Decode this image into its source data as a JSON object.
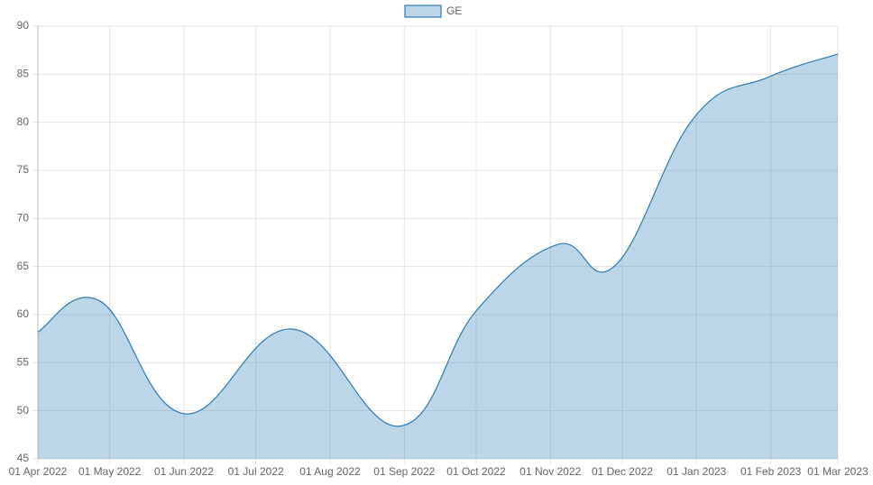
{
  "chart_data": {
    "type": "area",
    "x": [
      "2022-04-01",
      "2022-04-27",
      "2022-06-01",
      "2022-07-16",
      "2022-08-30",
      "2022-10-01",
      "2022-11-04",
      "2022-11-28",
      "2022-12-31",
      "2023-01-31",
      "2023-03-01"
    ],
    "series": [
      {
        "name": "GE",
        "color": "#2e7bb4",
        "fill": "rgba(46,123,180,0.32)",
        "values": [
          58.2,
          61.4,
          49.7,
          58.5,
          48.4,
          60.4,
          67.3,
          65.1,
          80.5,
          84.7,
          87.1
        ]
      }
    ],
    "xlim": [
      "2022-04-01",
      "2023-03-01"
    ],
    "xticks": [
      {
        "value": "2022-04-01",
        "label": "01 Apr 2022"
      },
      {
        "value": "2022-05-01",
        "label": "01 May 2022"
      },
      {
        "value": "2022-06-01",
        "label": "01 Jun 2022"
      },
      {
        "value": "2022-07-01",
        "label": "01 Jul 2022"
      },
      {
        "value": "2022-08-01",
        "label": "01 Aug 2022"
      },
      {
        "value": "2022-09-01",
        "label": "01 Sep 2022"
      },
      {
        "value": "2022-10-01",
        "label": "01 Oct 2022"
      },
      {
        "value": "2022-11-01",
        "label": "01 Nov 2022"
      },
      {
        "value": "2022-12-01",
        "label": "01 Dec 2022"
      },
      {
        "value": "2023-01-01",
        "label": "01 Jan 2023"
      },
      {
        "value": "2023-02-01",
        "label": "01 Feb 2023"
      },
      {
        "value": "2023-03-01",
        "label": "01 Mar 2023"
      }
    ],
    "ylim": [
      45,
      90
    ],
    "yticks": [
      45,
      50,
      55,
      60,
      65,
      70,
      75,
      80,
      85,
      90
    ],
    "grid": true,
    "legend": "top"
  }
}
